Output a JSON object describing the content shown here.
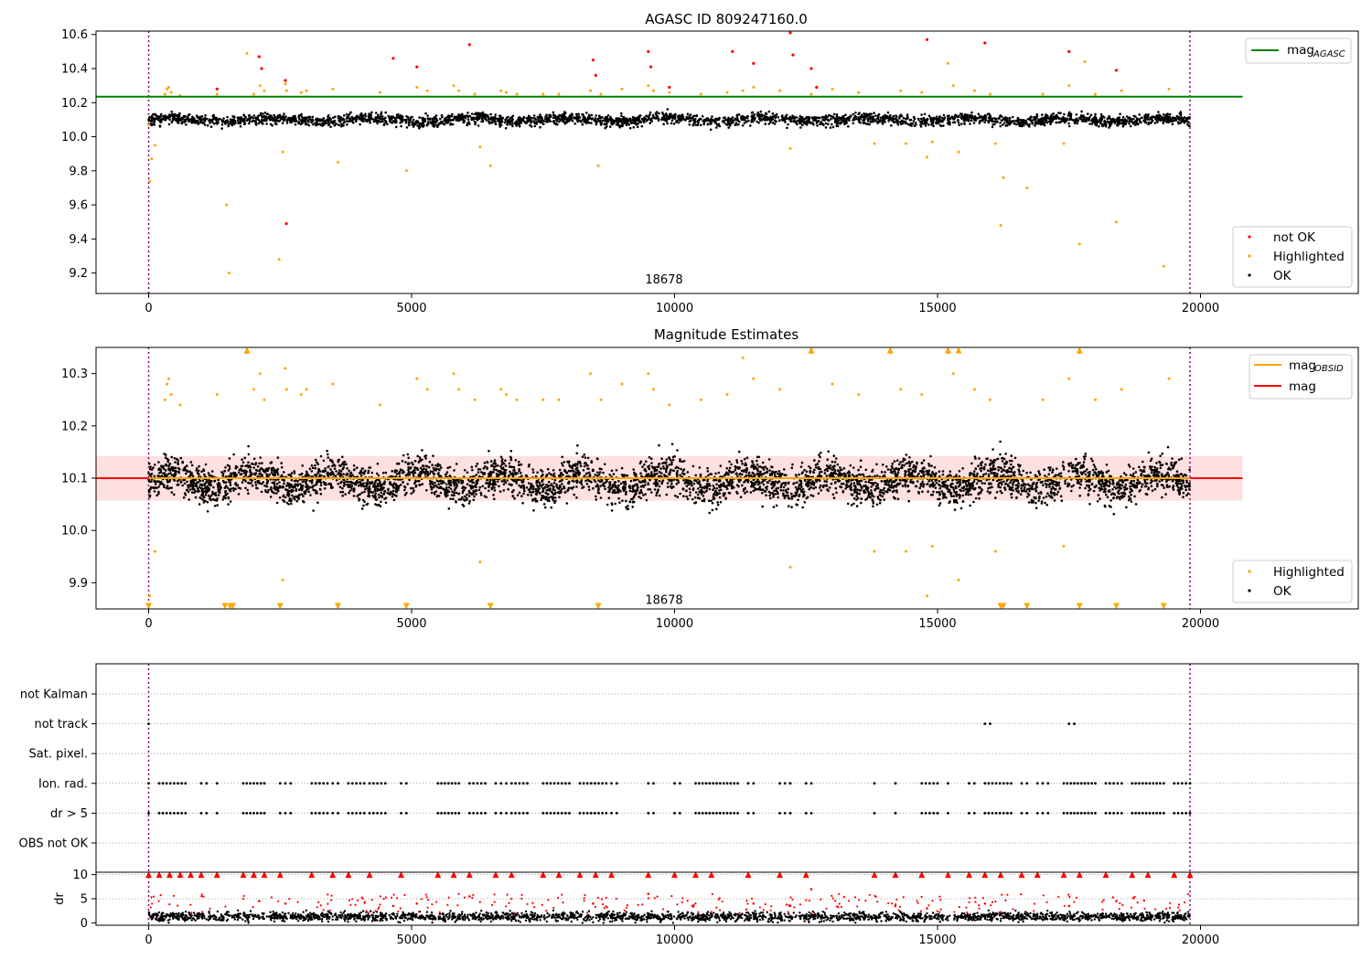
{
  "chart_data": [
    {
      "type": "scatter",
      "title": "AGASC ID 809247160.0",
      "xlim": [
        -1000,
        23000
      ],
      "ylim": [
        9.08,
        10.62
      ],
      "xticks": [
        0,
        5000,
        10000,
        15000,
        20000
      ],
      "yticks": [
        9.2,
        9.4,
        9.6,
        9.8,
        10.0,
        10.2,
        10.4,
        10.6
      ],
      "vlines": [
        0,
        19800
      ],
      "hline": {
        "name": "mag_AGASC",
        "y": 10.235,
        "x_range": [
          -1000,
          20800
        ],
        "color": "#008000"
      },
      "annotation": {
        "text": "18678",
        "x": 9800,
        "y": 9.14
      },
      "legend": {
        "position": "upper right",
        "items": [
          {
            "label": "mag",
            "sub": "AGASC",
            "color": "#008000"
          }
        ]
      },
      "legend2": {
        "position": "lower right",
        "items": [
          {
            "label": "not OK",
            "color": "#ff0000"
          },
          {
            "label": "Highlighted",
            "color": "#ffa500"
          },
          {
            "label": "OK",
            "color": "#000000"
          }
        ]
      },
      "ok_band": {
        "x_range": [
          0,
          19800
        ],
        "mean": 10.1,
        "spread": 0.055
      },
      "highlighted": [
        [
          0,
          10.07
        ],
        [
          20,
          9.74
        ],
        [
          60,
          9.87
        ],
        [
          120,
          9.95
        ],
        [
          310,
          10.25
        ],
        [
          350,
          10.28
        ],
        [
          380,
          10.29
        ],
        [
          430,
          10.26
        ],
        [
          600,
          10.24
        ],
        [
          1300,
          10.25
        ],
        [
          1480,
          9.6
        ],
        [
          1530,
          9.2
        ],
        [
          1870,
          10.49
        ],
        [
          2000,
          10.25
        ],
        [
          2120,
          10.3
        ],
        [
          2200,
          10.27
        ],
        [
          2480,
          9.28
        ],
        [
          2550,
          9.91
        ],
        [
          2600,
          10.31
        ],
        [
          2620,
          10.27
        ],
        [
          2900,
          10.26
        ],
        [
          3000,
          10.27
        ],
        [
          3500,
          10.28
        ],
        [
          3600,
          9.85
        ],
        [
          4400,
          10.26
        ],
        [
          4900,
          9.8
        ],
        [
          5100,
          10.29
        ],
        [
          5300,
          10.27
        ],
        [
          5800,
          10.3
        ],
        [
          5900,
          10.27
        ],
        [
          6200,
          10.25
        ],
        [
          6300,
          9.94
        ],
        [
          6500,
          9.83
        ],
        [
          6700,
          10.27
        ],
        [
          6800,
          10.26
        ],
        [
          7000,
          10.25
        ],
        [
          7500,
          10.25
        ],
        [
          7800,
          10.25
        ],
        [
          8400,
          10.27
        ],
        [
          8550,
          9.83
        ],
        [
          8600,
          10.25
        ],
        [
          9000,
          10.28
        ],
        [
          9500,
          10.3
        ],
        [
          9600,
          10.27
        ],
        [
          9900,
          10.26
        ],
        [
          10500,
          10.25
        ],
        [
          11000,
          10.26
        ],
        [
          11300,
          10.27
        ],
        [
          11500,
          10.29
        ],
        [
          12000,
          10.27
        ],
        [
          12200,
          9.93
        ],
        [
          12600,
          10.25
        ],
        [
          13000,
          10.28
        ],
        [
          13500,
          10.26
        ],
        [
          13800,
          9.96
        ],
        [
          14300,
          10.27
        ],
        [
          14400,
          9.96
        ],
        [
          14700,
          10.26
        ],
        [
          14800,
          9.88
        ],
        [
          14900,
          9.97
        ],
        [
          15200,
          10.43
        ],
        [
          15300,
          10.3
        ],
        [
          15400,
          9.91
        ],
        [
          15700,
          10.27
        ],
        [
          16000,
          10.25
        ],
        [
          16100,
          9.96
        ],
        [
          16200,
          9.48
        ],
        [
          16250,
          9.76
        ],
        [
          16700,
          9.7
        ],
        [
          17000,
          10.25
        ],
        [
          17400,
          9.96
        ],
        [
          17500,
          10.3
        ],
        [
          17700,
          9.37
        ],
        [
          17800,
          10.44
        ],
        [
          18000,
          10.25
        ],
        [
          18400,
          9.5
        ],
        [
          18500,
          10.27
        ],
        [
          19300,
          9.24
        ],
        [
          19400,
          10.28
        ]
      ],
      "not_ok": [
        [
          1300,
          10.28
        ],
        [
          2100,
          10.47
        ],
        [
          2150,
          10.4
        ],
        [
          2600,
          10.33
        ],
        [
          2620,
          9.49
        ],
        [
          4650,
          10.46
        ],
        [
          5100,
          10.41
        ],
        [
          6100,
          10.54
        ],
        [
          8450,
          10.45
        ],
        [
          8500,
          10.36
        ],
        [
          9500,
          10.5
        ],
        [
          9550,
          10.41
        ],
        [
          9900,
          10.29
        ],
        [
          11100,
          10.5
        ],
        [
          11500,
          10.43
        ],
        [
          12200,
          10.61
        ],
        [
          12250,
          10.48
        ],
        [
          12600,
          10.4
        ],
        [
          12700,
          10.29
        ],
        [
          14800,
          10.57
        ],
        [
          15900,
          10.55
        ],
        [
          17500,
          10.5
        ],
        [
          18400,
          10.39
        ]
      ]
    },
    {
      "type": "scatter",
      "title": "Magnitude Estimates",
      "xlim": [
        -1000,
        23000
      ],
      "ylim": [
        9.85,
        10.35
      ],
      "xticks": [
        0,
        5000,
        10000,
        15000,
        20000
      ],
      "yticks": [
        9.9,
        10.0,
        10.1,
        10.2,
        10.3
      ],
      "vlines": [
        0,
        19800
      ],
      "hlines": [
        {
          "name": "mag_OBSID",
          "y": 10.1,
          "x_range": [
            0,
            19800
          ],
          "color": "#ffa500"
        },
        {
          "name": "mag",
          "y": 10.1,
          "x_range": [
            -1000,
            20800
          ],
          "color": "#ff0000"
        }
      ],
      "band": {
        "y_range": [
          10.057,
          10.142
        ],
        "x_range": [
          -1000,
          20800
        ]
      },
      "annotation": {
        "text": "18678",
        "x": 9800,
        "y": 9.86
      },
      "legend": {
        "position": "upper right",
        "items": [
          {
            "label": "mag",
            "sub": "OBSID",
            "color": "#ffa500"
          },
          {
            "label": "mag",
            "sub": "",
            "color": "#ff0000"
          }
        ]
      },
      "legend2": {
        "position": "lower right",
        "items": [
          {
            "label": "Highlighted",
            "color": "#ffa500"
          },
          {
            "label": "OK",
            "color": "#000000"
          }
        ]
      },
      "ok_band": {
        "x_range": [
          0,
          19800
        ],
        "mean": 10.095,
        "spread": 0.055
      },
      "highlighted": [
        [
          20,
          9.875
        ],
        [
          120,
          9.96
        ],
        [
          310,
          10.25
        ],
        [
          350,
          10.28
        ],
        [
          380,
          10.29
        ],
        [
          430,
          10.26
        ],
        [
          600,
          10.24
        ],
        [
          1300,
          10.26
        ],
        [
          1870,
          10.34
        ],
        [
          2000,
          10.27
        ],
        [
          2120,
          10.3
        ],
        [
          2200,
          10.25
        ],
        [
          2550,
          9.905
        ],
        [
          2600,
          10.31
        ],
        [
          2620,
          10.27
        ],
        [
          2900,
          10.26
        ],
        [
          3000,
          10.27
        ],
        [
          3500,
          10.28
        ],
        [
          4400,
          10.24
        ],
        [
          5100,
          10.29
        ],
        [
          5300,
          10.27
        ],
        [
          5800,
          10.3
        ],
        [
          5900,
          10.27
        ],
        [
          6200,
          10.25
        ],
        [
          6300,
          9.94
        ],
        [
          6700,
          10.27
        ],
        [
          6800,
          10.26
        ],
        [
          7000,
          10.25
        ],
        [
          7500,
          10.25
        ],
        [
          7800,
          10.25
        ],
        [
          8400,
          10.3
        ],
        [
          8600,
          10.25
        ],
        [
          9000,
          10.28
        ],
        [
          9500,
          10.3
        ],
        [
          9600,
          10.27
        ],
        [
          9900,
          10.24
        ],
        [
          10500,
          10.25
        ],
        [
          11000,
          10.26
        ],
        [
          11300,
          10.33
        ],
        [
          11500,
          10.29
        ],
        [
          12000,
          10.27
        ],
        [
          12200,
          9.93
        ],
        [
          12600,
          10.34
        ],
        [
          13000,
          10.28
        ],
        [
          13500,
          10.26
        ],
        [
          13800,
          9.96
        ],
        [
          14100,
          10.34
        ],
        [
          14300,
          10.27
        ],
        [
          14400,
          9.96
        ],
        [
          14700,
          10.26
        ],
        [
          14800,
          9.875
        ],
        [
          14900,
          9.97
        ],
        [
          15200,
          10.34
        ],
        [
          15300,
          10.3
        ],
        [
          15400,
          9.905
        ],
        [
          15700,
          10.27
        ],
        [
          16000,
          10.25
        ],
        [
          16100,
          9.96
        ],
        [
          17000,
          10.25
        ],
        [
          17400,
          9.97
        ],
        [
          17500,
          10.29
        ],
        [
          17700,
          10.34
        ],
        [
          18000,
          10.25
        ],
        [
          18500,
          10.27
        ],
        [
          19400,
          10.29
        ]
      ],
      "below_range_x": [
        0,
        1450,
        1550,
        1600,
        2500,
        3600,
        4900,
        6500,
        8550,
        16200,
        16250,
        16700,
        17700,
        18400,
        19300
      ],
      "above_range_x": [
        1870,
        12600,
        14100,
        15200,
        15400,
        17700
      ]
    },
    {
      "type": "scatter",
      "title": "",
      "xlim": [
        -1000,
        23000
      ],
      "vlines": [
        0,
        19800
      ],
      "categories": [
        "not Kalman",
        "not track",
        "Sat. pixel.",
        "Ion. rad.",
        "dr > 5",
        "OBS not OK"
      ],
      "flag_points": {
        "not track": [
          [
            0,
            50
          ],
          [
            15900,
            100
          ],
          [
            17500,
            100
          ]
        ],
        "Ion. rad.": [
          [
            0,
            50
          ],
          [
            200,
            500
          ],
          [
            1000,
            100
          ],
          [
            1300,
            50
          ],
          [
            1800,
            400
          ],
          [
            2500,
            200
          ],
          [
            3100,
            300
          ],
          [
            3500,
            100
          ],
          [
            3800,
            300
          ],
          [
            4200,
            300
          ],
          [
            4800,
            100
          ],
          [
            5500,
            400
          ],
          [
            6100,
            300
          ],
          [
            6600,
            200
          ],
          [
            6900,
            300
          ],
          [
            7500,
            500
          ],
          [
            8200,
            500
          ],
          [
            8800,
            100
          ],
          [
            9500,
            100
          ],
          [
            10000,
            100
          ],
          [
            10400,
            800
          ],
          [
            11400,
            100
          ],
          [
            12000,
            200
          ],
          [
            12500,
            100
          ],
          [
            13800,
            50
          ],
          [
            14200,
            50
          ],
          [
            14700,
            300
          ],
          [
            15200,
            50
          ],
          [
            15600,
            100
          ],
          [
            15900,
            500
          ],
          [
            16600,
            100
          ],
          [
            16900,
            200
          ],
          [
            17400,
            600
          ],
          [
            18200,
            300
          ],
          [
            18700,
            600
          ],
          [
            19500,
            300
          ]
        ],
        "dr > 5": [
          [
            0,
            50
          ],
          [
            200,
            500
          ],
          [
            1000,
            100
          ],
          [
            1300,
            50
          ],
          [
            1800,
            400
          ],
          [
            2500,
            200
          ],
          [
            3100,
            300
          ],
          [
            3500,
            100
          ],
          [
            3800,
            300
          ],
          [
            4200,
            300
          ],
          [
            4800,
            100
          ],
          [
            5500,
            400
          ],
          [
            6100,
            300
          ],
          [
            6600,
            200
          ],
          [
            6900,
            300
          ],
          [
            7500,
            500
          ],
          [
            8200,
            500
          ],
          [
            8800,
            100
          ],
          [
            9500,
            100
          ],
          [
            10000,
            100
          ],
          [
            10400,
            800
          ],
          [
            11400,
            100
          ],
          [
            12000,
            200
          ],
          [
            12500,
            100
          ],
          [
            13800,
            50
          ],
          [
            14200,
            50
          ],
          [
            14700,
            300
          ],
          [
            15200,
            50
          ],
          [
            15600,
            100
          ],
          [
            15900,
            500
          ],
          [
            16600,
            100
          ],
          [
            16900,
            200
          ],
          [
            17400,
            600
          ],
          [
            18200,
            300
          ],
          [
            18700,
            600
          ],
          [
            19500,
            300
          ]
        ]
      }
    },
    {
      "type": "scatter",
      "title": "",
      "xlim": [
        -1000,
        23000
      ],
      "ylim": [
        -0.5,
        10.5
      ],
      "xticks": [
        0,
        5000,
        10000,
        15000,
        20000
      ],
      "yticks": [
        0,
        5,
        10
      ],
      "ylabel": "dr",
      "vlines": [
        0,
        19800
      ],
      "ok_band": {
        "x_range": [
          0,
          19800
        ],
        "mean": 1.3,
        "spread": 0.8
      },
      "red_capped_x": [
        0,
        200,
        400,
        600,
        800,
        1000,
        1300,
        1800,
        2000,
        2200,
        2500,
        3100,
        3500,
        3800,
        4200,
        4800,
        5500,
        5800,
        6100,
        6600,
        6900,
        7500,
        7800,
        8200,
        8500,
        8800,
        9500,
        10000,
        10400,
        10700,
        11400,
        12000,
        12500,
        13800,
        14200,
        14700,
        15200,
        15600,
        15900,
        16200,
        16600,
        16900,
        17400,
        17700,
        18200,
        18700,
        19000,
        19500,
        19800
      ],
      "red_points": [
        [
          2100,
          4.5
        ],
        [
          2600,
          4
        ],
        [
          4650,
          3.5
        ],
        [
          5100,
          4
        ],
        [
          6100,
          5.5
        ],
        [
          8450,
          4
        ],
        [
          9500,
          6
        ],
        [
          11500,
          4
        ],
        [
          12200,
          3.5
        ],
        [
          12600,
          7
        ],
        [
          14800,
          3
        ],
        [
          15900,
          4
        ],
        [
          17500,
          3.5
        ],
        [
          18400,
          4.5
        ]
      ]
    }
  ]
}
